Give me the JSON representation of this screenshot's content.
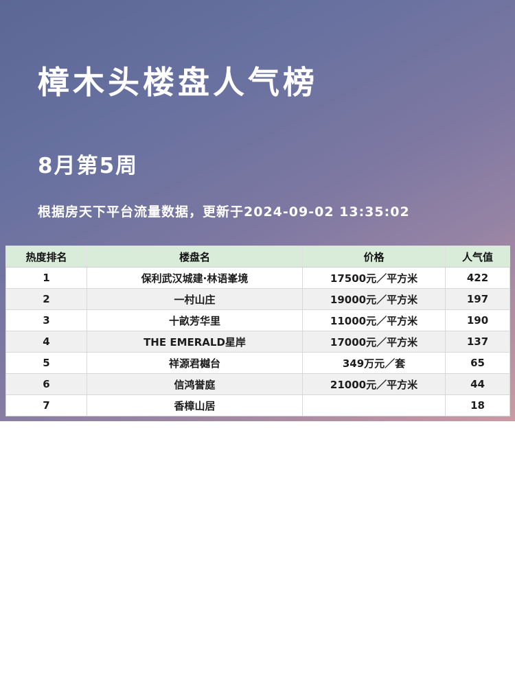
{
  "header": {
    "title": "樟木头楼盘人气榜",
    "subtitle": "8月第5周",
    "source_note": "根据房天下平台流量数据，更新于2024-09-02 13:35:02"
  },
  "table": {
    "columns": [
      "热度排名",
      "楼盘名",
      "价格",
      "人气值"
    ],
    "rows": [
      {
        "rank": "1",
        "name": "保利武汉城建·林语峯境",
        "price": "17500元／平方米",
        "pop": "422"
      },
      {
        "rank": "2",
        "name": "一村山庄",
        "price": "19000元／平方米",
        "pop": "197"
      },
      {
        "rank": "3",
        "name": "十畝芳华里",
        "price": "11000元／平方米",
        "pop": "190"
      },
      {
        "rank": "4",
        "name": "THE EMERALD星岸",
        "price": "17000元／平方米",
        "pop": "137"
      },
      {
        "rank": "5",
        "name": "祥源君樾台",
        "price": "349万元／套",
        "pop": "65"
      },
      {
        "rank": "6",
        "name": "信鸿誉庭",
        "price": "21000元／平方米",
        "pop": "44"
      },
      {
        "rank": "7",
        "name": "香樟山居",
        "price": "",
        "pop": "18"
      }
    ]
  },
  "colors": {
    "gradient_top": "#5c6796",
    "gradient_bottom": "#cb9aa4",
    "header_bg": "#d9ecda",
    "row_alt_bg": "#f0f0f0",
    "text_on_gradient": "#ffffff",
    "table_text": "#1c1c1c"
  },
  "chart_data": {
    "type": "table",
    "title": "樟木头楼盘人气榜",
    "subtitle": "8月第5周",
    "note": "根据房天下平台流量数据，更新于2024-09-02 13:35:02",
    "columns": [
      "热度排名",
      "楼盘名",
      "价格",
      "人气值"
    ],
    "rows": [
      [
        1,
        "保利武汉城建·林语峯境",
        "17500元／平方米",
        422
      ],
      [
        2,
        "一村山庄",
        "19000元／平方米",
        197
      ],
      [
        3,
        "十畝芳华里",
        "11000元／平方米",
        190
      ],
      [
        4,
        "THE EMERALD星岸",
        "17000元／平方米",
        137
      ],
      [
        5,
        "祥源君樾台",
        "349万元／套",
        65
      ],
      [
        6,
        "信鸿誉庭",
        "21000元／平方米",
        44
      ],
      [
        7,
        "香樟山居",
        "",
        18
      ]
    ]
  }
}
